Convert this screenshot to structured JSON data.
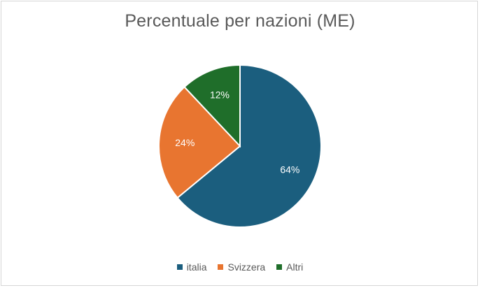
{
  "chart_data": {
    "type": "pie",
    "title": "Percentuale per nazioni (ME)",
    "categories": [
      "italia",
      "Svizzera",
      "Altri"
    ],
    "values": [
      64,
      24,
      12
    ],
    "labels": [
      "64%",
      "24%",
      "12%"
    ],
    "colors": [
      "#1b5e7e",
      "#e87530",
      "#1f6e2a"
    ],
    "legend_position": "bottom"
  }
}
